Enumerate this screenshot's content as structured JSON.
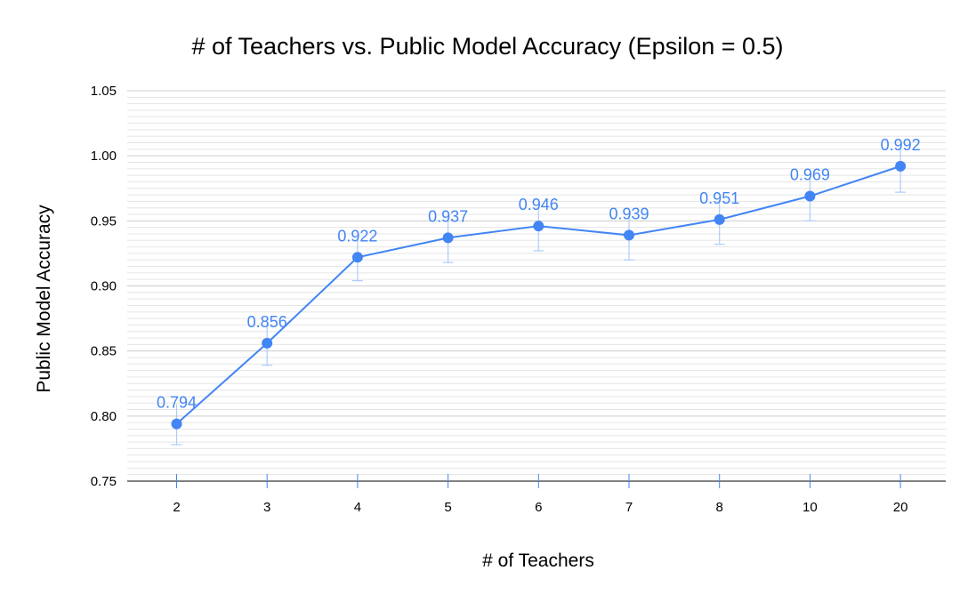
{
  "chart_data": {
    "type": "line",
    "title": "# of Teachers vs. Public Model Accuracy (Epsilon = 0.5)",
    "xlabel": "# of Teachers",
    "ylabel": "Public Model Accuracy",
    "categories": [
      "2",
      "3",
      "4",
      "5",
      "6",
      "7",
      "8",
      "10",
      "20"
    ],
    "series": [
      {
        "values": [
          0.794,
          0.856,
          0.922,
          0.937,
          0.946,
          0.939,
          0.951,
          0.969,
          0.992
        ],
        "error_lower": [
          0.016,
          0.017,
          0.018,
          0.019,
          0.019,
          0.019,
          0.019,
          0.019,
          0.02
        ],
        "error_upper": [
          0.015,
          0.015,
          0.015,
          0.015,
          0.015,
          0.015,
          0.015,
          0.015,
          0.015
        ],
        "data_labels": [
          "0.794",
          "0.856",
          "0.922",
          "0.937",
          "0.946",
          "0.939",
          "0.951",
          "0.969",
          "0.992"
        ]
      }
    ],
    "ylim": [
      0.75,
      1.05
    ],
    "yticks": [
      0.75,
      0.8,
      0.85,
      0.9,
      0.95,
      1.0,
      1.05
    ],
    "ytick_labels": [
      "0.75",
      "0.80",
      "0.85",
      "0.90",
      "0.95",
      "1.00",
      "1.05"
    ],
    "grid": true,
    "legend": "none",
    "colors": {
      "series": "#4285f4",
      "error_bar": "#aecbfa",
      "grid_major": "#cccccc",
      "grid_minor": "#e5e5e5",
      "axis": "#000000"
    }
  }
}
